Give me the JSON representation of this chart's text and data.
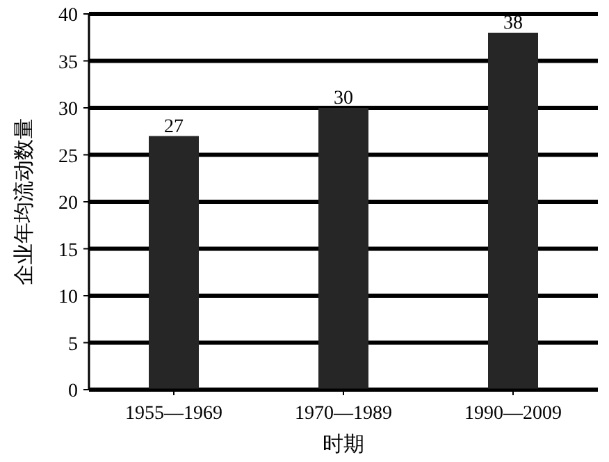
{
  "chart_data": {
    "type": "bar",
    "xlabel": "时期",
    "ylabel": "企业年均流动数量",
    "categories": [
      "1955—1969",
      "1970—1989",
      "1990—2009"
    ],
    "values": [
      27,
      30,
      38
    ],
    "color": "#262626",
    "ylim": [
      0,
      40
    ],
    "yticks": [
      0,
      5,
      10,
      15,
      20,
      25,
      30,
      35,
      40
    ],
    "grid": "y",
    "data_labels": true
  }
}
